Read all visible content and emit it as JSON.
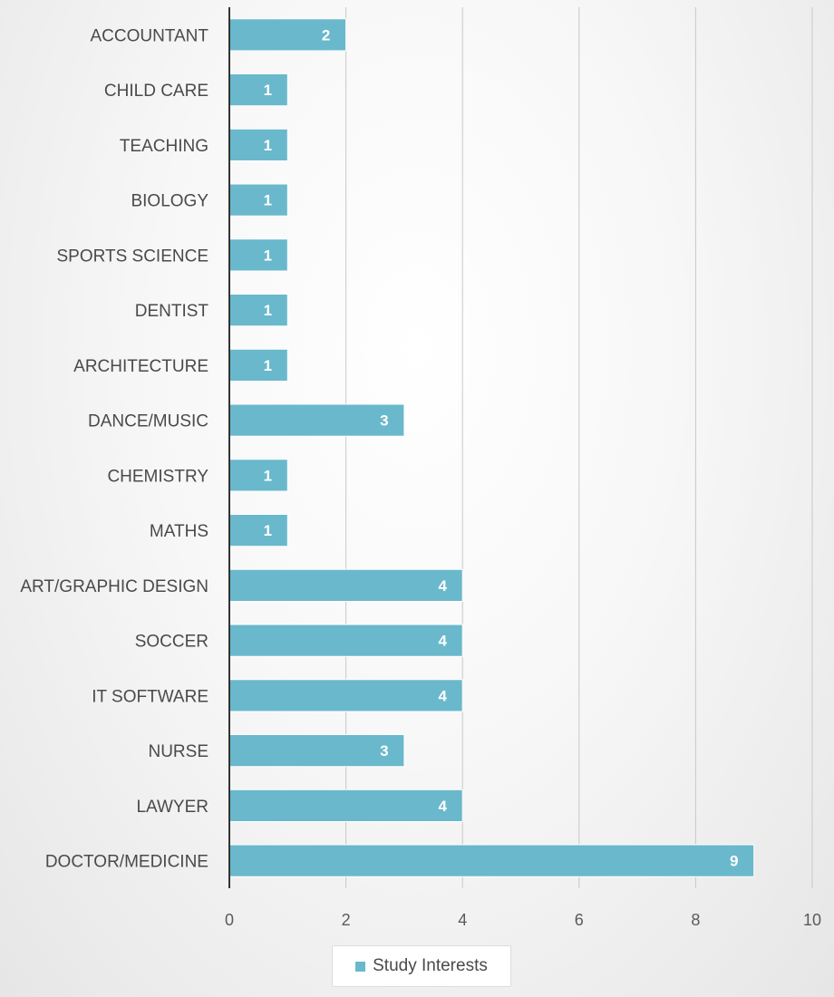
{
  "chart_data": {
    "type": "bar",
    "orientation": "horizontal",
    "categories": [
      "ACCOUNTANT",
      "CHILD CARE",
      "TEACHING",
      "BIOLOGY",
      "SPORTS SCIENCE",
      "DENTIST",
      "ARCHITECTURE",
      "DANCE/MUSIC",
      "CHEMISTRY",
      "MATHS",
      "ART/GRAPHIC DESIGN",
      "SOCCER",
      "IT SOFTWARE",
      "NURSE",
      "LAWYER",
      "DOCTOR/MEDICINE"
    ],
    "series": [
      {
        "name": "Study Interests",
        "values": [
          2,
          1,
          1,
          1,
          1,
          1,
          1,
          3,
          1,
          1,
          4,
          4,
          4,
          3,
          4,
          9
        ]
      }
    ],
    "xlim": [
      0,
      10
    ],
    "xticks": [
      0,
      2,
      4,
      6,
      8,
      10
    ],
    "grid": "vertical",
    "data_labels": true,
    "legend_position": "bottom",
    "colors": {
      "bar": "#6ab8cc",
      "bar_border": "#ffffff",
      "grid": "#c8c8c8",
      "axis": "#333333"
    }
  },
  "legend": {
    "label": "Study Interests"
  }
}
